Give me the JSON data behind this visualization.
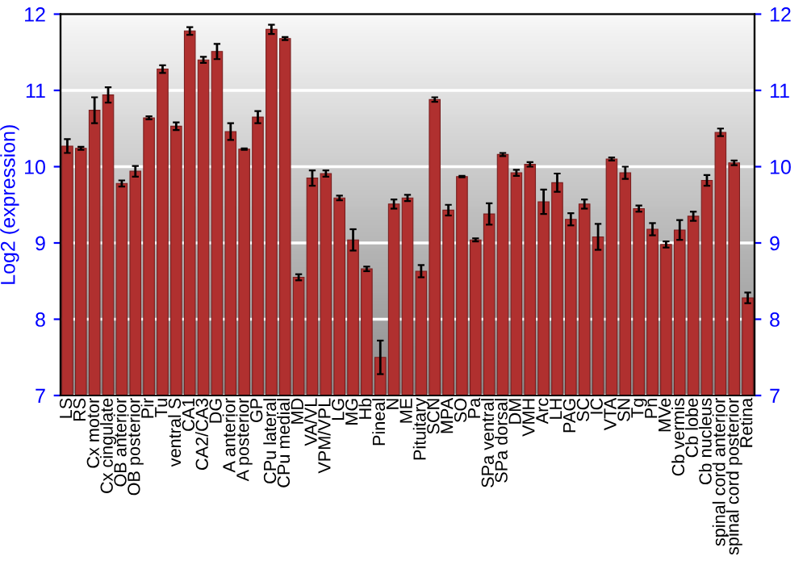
{
  "chart_data": {
    "type": "bar",
    "ylabel": "Log2 (expression)",
    "categories": [
      "LS",
      "RS",
      "Cx motor",
      "Cx cingulate",
      "OB anterior",
      "OB posterior",
      "Pir",
      "Tu",
      "ventral S",
      "CA1",
      "CA2/CA3",
      "DG",
      "A anterior",
      "A posterior",
      "GP",
      "CPu lateral",
      "CPu medial",
      "MD",
      "VA/VL",
      "VPM/VPL",
      "LG",
      "MG",
      "Hb",
      "Pineal",
      "N",
      "ME",
      "Pituitary",
      "SCN",
      "MPA",
      "SO",
      "Pa",
      "SPa ventral",
      "SPa dorsal",
      "DM",
      "VMH",
      "Arc",
      "LH",
      "PAG",
      "SC",
      "IC",
      "VTA",
      "SN",
      "Tg",
      "Pn",
      "MVe",
      "Cb vermis",
      "Cb lobe",
      "Cb nucleus",
      "spinal cord anterior",
      "spinal cord posterior",
      "Retina"
    ],
    "values": [
      10.27,
      10.24,
      10.74,
      10.94,
      9.78,
      9.94,
      10.64,
      11.28,
      10.53,
      11.78,
      11.4,
      11.51,
      10.46,
      10.23,
      10.65,
      11.8,
      11.68,
      8.55,
      9.85,
      9.91,
      9.59,
      9.04,
      8.66,
      7.5,
      9.51,
      9.59,
      8.63,
      10.88,
      9.43,
      9.87,
      9.04,
      9.38,
      10.16,
      9.92,
      10.03,
      9.54,
      9.79,
      9.31,
      9.51,
      9.08,
      10.1,
      9.92,
      9.45,
      9.18,
      8.98,
      9.17,
      9.35,
      9.82,
      10.45,
      10.05,
      8.28
    ],
    "errors": [
      0.09,
      0.02,
      0.17,
      0.1,
      0.04,
      0.07,
      0.02,
      0.05,
      0.05,
      0.05,
      0.04,
      0.1,
      0.11,
      0.01,
      0.08,
      0.06,
      0.02,
      0.04,
      0.1,
      0.04,
      0.03,
      0.14,
      0.03,
      0.22,
      0.06,
      0.04,
      0.08,
      0.03,
      0.07,
      0.01,
      0.02,
      0.14,
      0.02,
      0.04,
      0.03,
      0.16,
      0.12,
      0.08,
      0.06,
      0.17,
      0.02,
      0.08,
      0.04,
      0.08,
      0.04,
      0.13,
      0.06,
      0.07,
      0.05,
      0.03,
      0.07
    ],
    "color": "#b0302f",
    "ylim": [
      7,
      12
    ],
    "yticks": [
      7,
      8,
      9,
      10,
      11,
      12
    ],
    "y2lim": [
      7,
      12
    ],
    "y2ticks": [
      7,
      8,
      9,
      10,
      11,
      12
    ],
    "grid": "y"
  }
}
